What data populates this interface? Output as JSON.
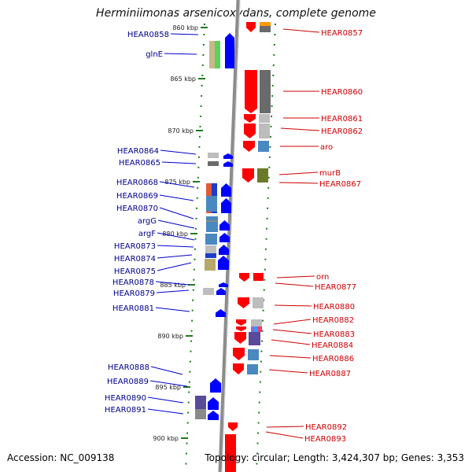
{
  "title": "Herminiimonas arsenicoxydans, complete genome",
  "footer": {
    "accession": "Accession: NC_009138",
    "summary": "Topology: circular; Length: 3,424,307 bp; Genes: 3,353"
  },
  "colors": {
    "plus_strand": "#0000ff",
    "minus_strand": "#ff0000",
    "backbone": "#8c8c8c",
    "ticks": "#1f7a1f",
    "left_labels": "#00008b",
    "right_labels": "#cc0000"
  },
  "scale": {
    "labels": [
      "860 kbp",
      "865 kbp",
      "870 kbp",
      "875 kbp",
      "880 kbp",
      "885 kbp",
      "890 kbp",
      "895 kbp",
      "900 kbp"
    ]
  },
  "left_genes": [
    {
      "label": "HEAR0858"
    },
    {
      "label": "glnE"
    },
    {
      "label": "HEAR0864"
    },
    {
      "label": "HEAR0865"
    },
    {
      "label": "HEAR0868"
    },
    {
      "label": "HEAR0869"
    },
    {
      "label": "HEAR0870"
    },
    {
      "label": "argG"
    },
    {
      "label": "argF"
    },
    {
      "label": "HEAR0873"
    },
    {
      "label": "HEAR0874"
    },
    {
      "label": "HEAR0875"
    },
    {
      "label": "HEAR0878"
    },
    {
      "label": "HEAR0879"
    },
    {
      "label": "HEAR0881"
    },
    {
      "label": "HEAR0888"
    },
    {
      "label": "HEAR0889"
    },
    {
      "label": "HEAR0890"
    },
    {
      "label": "HEAR0891"
    }
  ],
  "right_genes": [
    {
      "label": "HEAR0857"
    },
    {
      "label": "HEAR0860"
    },
    {
      "label": "HEAR0861"
    },
    {
      "label": "HEAR0862"
    },
    {
      "label": "aro"
    },
    {
      "label": "murB"
    },
    {
      "label": "HEAR0867"
    },
    {
      "label": "orn"
    },
    {
      "label": "HEAR0877"
    },
    {
      "label": "HEAR0880"
    },
    {
      "label": "HEAR0882"
    },
    {
      "label": "HEAR0883"
    },
    {
      "label": "HEAR0884"
    },
    {
      "label": "HEAR0886"
    },
    {
      "label": "HEAR0887"
    },
    {
      "label": "HEAR0892"
    },
    {
      "label": "HEAR0893"
    }
  ]
}
